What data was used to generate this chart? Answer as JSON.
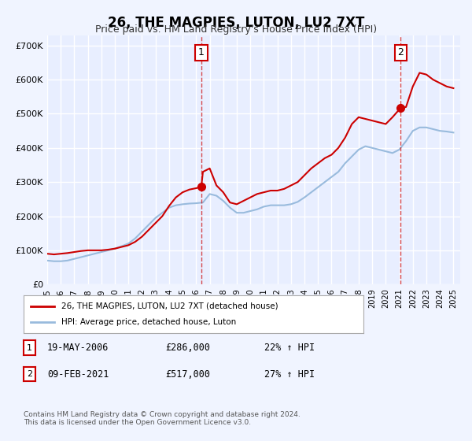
{
  "title": "26, THE MAGPIES, LUTON, LU2 7XT",
  "subtitle": "Price paid vs. HM Land Registry's House Price Index (HPI)",
  "bg_color": "#f0f4ff",
  "plot_bg_color": "#e8eeff",
  "grid_color": "#ffffff",
  "red_line_color": "#cc0000",
  "blue_line_color": "#99bbdd",
  "marker1_date": 2006.38,
  "marker1_value": 286000,
  "marker2_date": 2021.1,
  "marker2_value": 517000,
  "vline1_x": 2006.38,
  "vline2_x": 2021.1,
  "ylabel_ticks": [
    "£0",
    "£100K",
    "£200K",
    "£300K",
    "£400K",
    "£500K",
    "£600K",
    "£700K"
  ],
  "ylabel_values": [
    0,
    100000,
    200000,
    300000,
    400000,
    500000,
    600000,
    700000
  ],
  "xmin": 1995.0,
  "xmax": 2025.5,
  "ymin": 0,
  "ymax": 730000,
  "legend_label_red": "26, THE MAGPIES, LUTON, LU2 7XT (detached house)",
  "legend_label_blue": "HPI: Average price, detached house, Luton",
  "annotation1_label": "1",
  "annotation2_label": "2",
  "table_row1": [
    "1",
    "19-MAY-2006",
    "£286,000",
    "22% ↑ HPI"
  ],
  "table_row2": [
    "2",
    "09-FEB-2021",
    "£517,000",
    "27% ↑ HPI"
  ],
  "footnote": "Contains HM Land Registry data © Crown copyright and database right 2024.\nThis data is licensed under the Open Government Licence v3.0.",
  "red_x": [
    1995.0,
    1995.5,
    1996.0,
    1996.5,
    1997.0,
    1997.5,
    1998.0,
    1998.5,
    1999.0,
    1999.5,
    2000.0,
    2000.5,
    2001.0,
    2001.5,
    2002.0,
    2002.5,
    2003.0,
    2003.5,
    2004.0,
    2004.5,
    2005.0,
    2005.5,
    2006.0,
    2006.38,
    2006.5,
    2007.0,
    2007.5,
    2008.0,
    2008.5,
    2009.0,
    2009.5,
    2010.0,
    2010.5,
    2011.0,
    2011.5,
    2012.0,
    2012.5,
    2013.0,
    2013.5,
    2014.0,
    2014.5,
    2015.0,
    2015.5,
    2016.0,
    2016.5,
    2017.0,
    2017.5,
    2018.0,
    2018.5,
    2019.0,
    2019.5,
    2020.0,
    2020.5,
    2021.1,
    2021.5,
    2022.0,
    2022.5,
    2023.0,
    2023.5,
    2024.0,
    2024.5,
    2025.0
  ],
  "red_y": [
    90000,
    88000,
    90000,
    92000,
    95000,
    98000,
    100000,
    100000,
    100000,
    102000,
    105000,
    110000,
    115000,
    125000,
    140000,
    160000,
    180000,
    200000,
    230000,
    255000,
    270000,
    278000,
    282000,
    286000,
    330000,
    340000,
    290000,
    270000,
    240000,
    235000,
    245000,
    255000,
    265000,
    270000,
    275000,
    275000,
    280000,
    290000,
    300000,
    320000,
    340000,
    355000,
    370000,
    380000,
    400000,
    430000,
    470000,
    490000,
    485000,
    480000,
    475000,
    470000,
    490000,
    517000,
    520000,
    580000,
    620000,
    615000,
    600000,
    590000,
    580000,
    575000
  ],
  "blue_x": [
    1995.0,
    1995.5,
    1996.0,
    1996.5,
    1997.0,
    1997.5,
    1998.0,
    1998.5,
    1999.0,
    1999.5,
    2000.0,
    2000.5,
    2001.0,
    2001.5,
    2002.0,
    2002.5,
    2003.0,
    2003.5,
    2004.0,
    2004.5,
    2005.0,
    2005.5,
    2006.0,
    2006.5,
    2007.0,
    2007.5,
    2008.0,
    2008.5,
    2009.0,
    2009.5,
    2010.0,
    2010.5,
    2011.0,
    2011.5,
    2012.0,
    2012.5,
    2013.0,
    2013.5,
    2014.0,
    2014.5,
    2015.0,
    2015.5,
    2016.0,
    2016.5,
    2017.0,
    2017.5,
    2018.0,
    2018.5,
    2019.0,
    2019.5,
    2020.0,
    2020.5,
    2021.0,
    2021.5,
    2022.0,
    2022.5,
    2023.0,
    2023.5,
    2024.0,
    2024.5,
    2025.0
  ],
  "blue_y": [
    70000,
    68000,
    68000,
    70000,
    75000,
    80000,
    85000,
    90000,
    95000,
    100000,
    105000,
    112000,
    120000,
    135000,
    155000,
    175000,
    195000,
    210000,
    225000,
    232000,
    235000,
    237000,
    238000,
    240000,
    265000,
    260000,
    245000,
    225000,
    210000,
    210000,
    215000,
    220000,
    228000,
    232000,
    232000,
    232000,
    235000,
    242000,
    255000,
    270000,
    285000,
    300000,
    315000,
    330000,
    355000,
    375000,
    395000,
    405000,
    400000,
    395000,
    390000,
    385000,
    395000,
    420000,
    450000,
    460000,
    460000,
    455000,
    450000,
    448000,
    445000
  ]
}
